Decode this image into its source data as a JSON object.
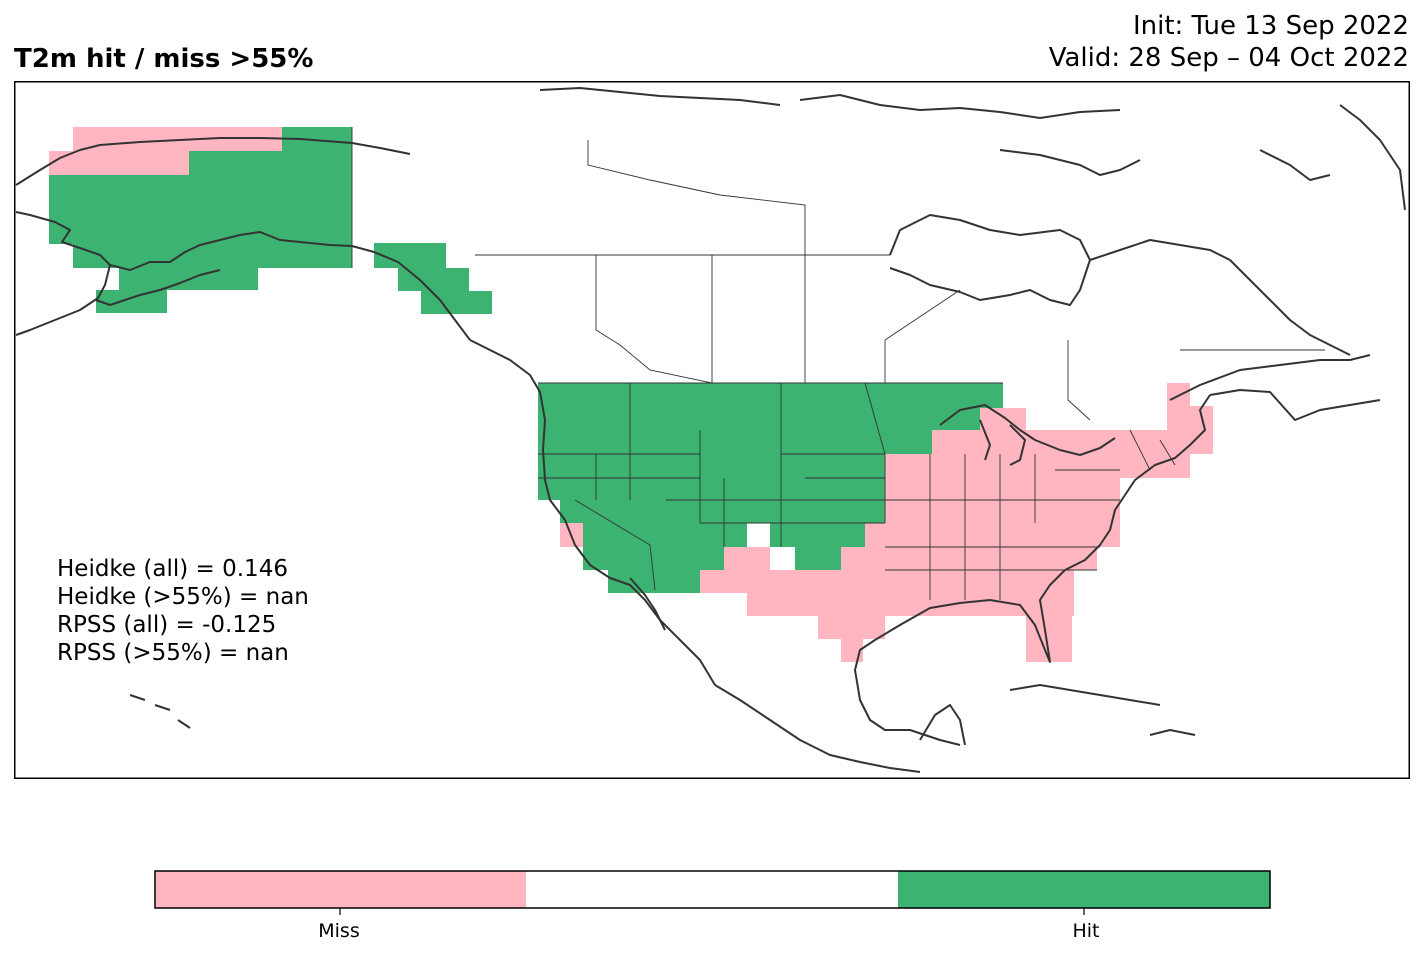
{
  "title": "T2m hit / miss  >55%",
  "init": "Init: Tue 13 Sep 2022",
  "valid": "Valid: 28 Sep – 04 Oct 2022",
  "stats": [
    "Heidke (all) = 0.146",
    "Heidke (>55%) = nan",
    "RPSS (all) = -0.125",
    "RPSS (>55%) = nan"
  ],
  "legend": {
    "categories": [
      "Miss",
      "",
      "Hit"
    ],
    "colors": [
      "#ffb6c1",
      "#ffffff",
      "#3cb371"
    ],
    "tick_labels": [
      "Miss",
      "Hit"
    ]
  },
  "map_data": {
    "region": "North America",
    "hit_color": "#3cb371",
    "miss_color": "#ffb6c1",
    "outline_color": "#333333"
  }
}
